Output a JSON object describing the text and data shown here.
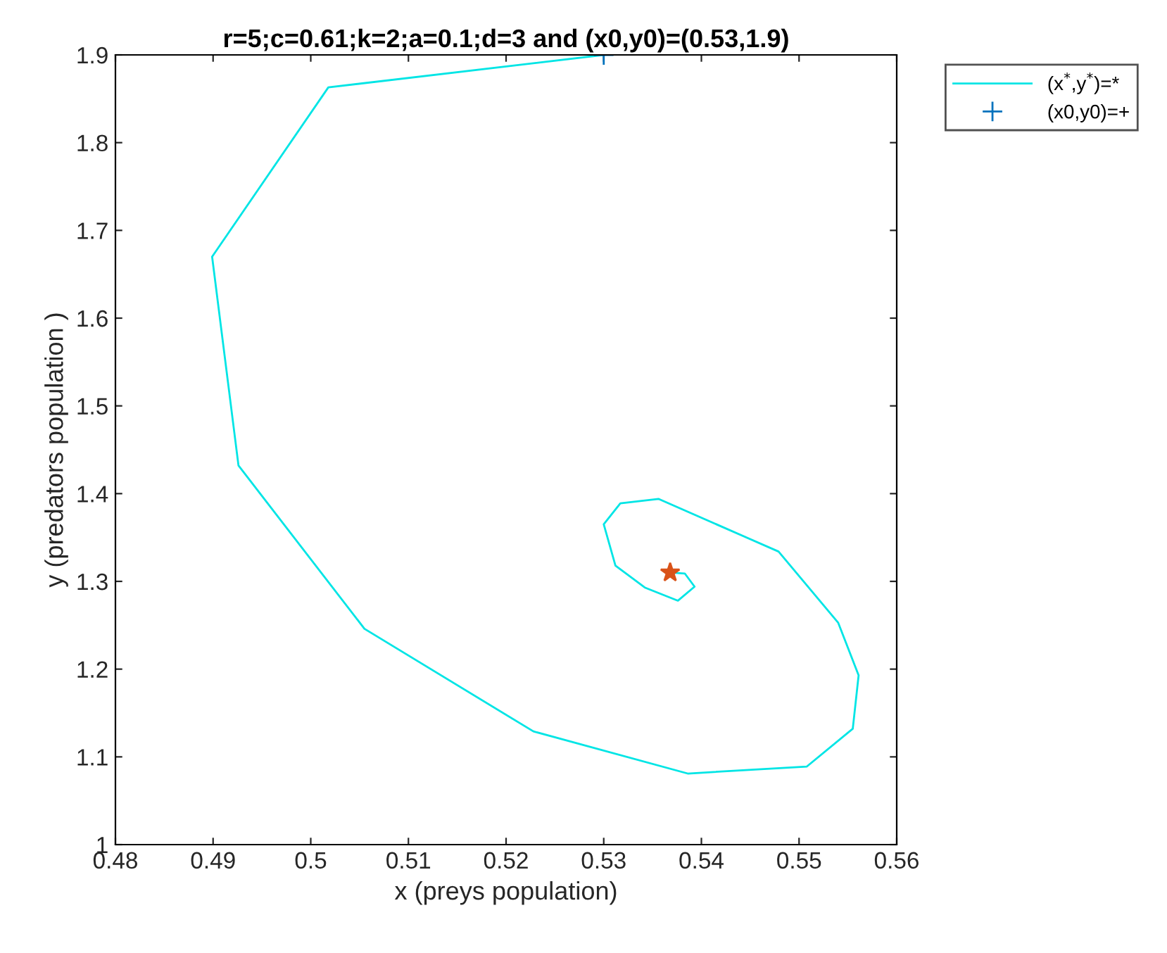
{
  "chart_data": {
    "type": "line",
    "title": "r=5;c=0.61;k=2;a=0.1;d=3 and (x0,y0)=(0.53,1.9)",
    "xlabel": "x (preys population)",
    "ylabel": "y (predators population )",
    "xlim": [
      0.48,
      0.56
    ],
    "xticks": [
      0.48,
      0.49,
      0.5,
      0.51,
      0.52,
      0.53,
      0.54,
      0.55,
      0.56
    ],
    "ylim": [
      1,
      1.9
    ],
    "yticks": [
      1,
      1.1,
      1.2,
      1.3,
      1.4,
      1.5,
      1.6,
      1.7,
      1.8,
      1.9
    ],
    "grid": false,
    "legend": "top right",
    "series": [
      {
        "name": "(x$^{*}$,y$^{*}$)=*",
        "color": "#00e5e5",
        "marker": "none",
        "x": [
          0.53,
          0.5018,
          0.4899,
          0.4926,
          0.5055,
          0.5228,
          0.5386,
          0.5508,
          0.5555,
          0.5561,
          0.554,
          0.5479,
          0.5356,
          0.5317,
          0.53,
          0.5312,
          0.5342,
          0.5376,
          0.5393,
          0.5383,
          0.5368
        ],
        "values": [
          1.9,
          1.863,
          1.67,
          1.432,
          1.246,
          1.129,
          1.081,
          1.089,
          1.132,
          1.193,
          1.253,
          1.334,
          1.394,
          1.389,
          1.365,
          1.318,
          1.293,
          1.278,
          1.294,
          1.309,
          1.31
        ]
      },
      {
        "name": "(x0,y0)=+",
        "type": "scatter",
        "color": "#0072bd",
        "marker": "cross",
        "x": [
          0.53
        ],
        "values": [
          1.9
        ]
      },
      {
        "type": "scatter",
        "color": "#d95319",
        "marker": "star",
        "x": [
          0.5368
        ],
        "values": [
          1.31
        ]
      }
    ]
  }
}
